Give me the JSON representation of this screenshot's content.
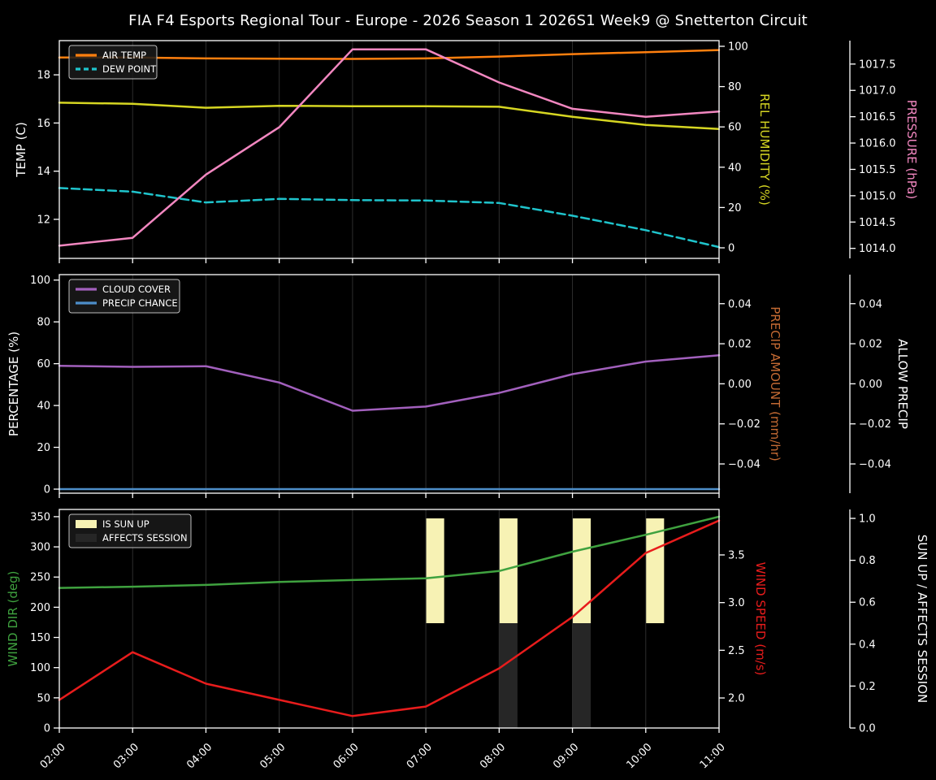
{
  "title": "FIA F4 Esports Regional Tour - Europe - 2026 Season 1 2026S1 Week9 @ Snetterton Circuit",
  "style": {
    "background": "#000000",
    "text_color": "#ffffff",
    "grid_color": "#2e2e2e",
    "spine_color": "#ffffff",
    "legend_border": "#c0c0c0",
    "legend_bg": "#1a1a1a"
  },
  "x_axis": {
    "hours": [
      2,
      3,
      4,
      5,
      6,
      7,
      8,
      9,
      10,
      11
    ],
    "tick_labels": [
      "02:00",
      "03:00",
      "04:00",
      "05:00",
      "06:00",
      "07:00",
      "08:00",
      "09:00",
      "10:00",
      "11:00"
    ]
  },
  "chart_data": [
    {
      "name": "temp-humidity-pressure-chart",
      "type": "line",
      "title": "",
      "axes": {
        "left": {
          "label": "TEMP (C)",
          "label_color": "#ffffff",
          "ylim": [
            10.38,
            19.42
          ],
          "ticks": [
            12,
            14,
            16,
            18
          ],
          "tick_labels": [
            "12",
            "14",
            "16",
            "18"
          ]
        },
        "right1": {
          "label": "REL HUMIDITY (%)",
          "label_color": "#d6d622",
          "ylim": [
            -5.24,
            102.82
          ],
          "ticks": [
            0,
            20,
            40,
            60,
            80,
            100
          ],
          "tick_labels": [
            "0",
            "20",
            "40",
            "60",
            "80",
            "100"
          ]
        },
        "right2": {
          "label": "PRESSURE (hPa)",
          "label_color": "#f287c0",
          "ylim": [
            1013.81,
            1017.945
          ],
          "ticks": [
            1014.0,
            1014.5,
            1015.0,
            1015.5,
            1016.0,
            1016.5,
            1017.0,
            1017.5
          ],
          "tick_labels": [
            "1014.0",
            "1014.5",
            "1015.0",
            "1015.5",
            "1016.0",
            "1016.5",
            "1017.0",
            "1017.5"
          ]
        }
      },
      "series": [
        {
          "id": "air-temp",
          "label": "AIR TEMP",
          "axis": "left",
          "color": "#ff7f0e",
          "dash": false,
          "values": [
            18.72,
            18.72,
            18.68,
            18.67,
            18.66,
            18.68,
            18.76,
            18.86,
            18.94,
            19.03
          ]
        },
        {
          "id": "dew-point",
          "label": "DEW POINT",
          "axis": "left",
          "color": "#1fc4cc",
          "dash": true,
          "values": [
            13.3,
            13.15,
            12.7,
            12.85,
            12.8,
            12.78,
            12.68,
            12.15,
            11.55,
            10.85
          ]
        },
        {
          "id": "rel-humidity",
          "label": "REL HUMIDITY",
          "axis": "right1",
          "color": "#d6d622",
          "dash": false,
          "values": [
            72,
            71.5,
            69.5,
            70.5,
            70.3,
            70.3,
            70,
            65,
            61,
            59
          ]
        },
        {
          "id": "pressure",
          "label": "PRESSURE",
          "axis": "right2",
          "color": "#f287c0",
          "dash": false,
          "values": [
            1014.05,
            1014.2,
            1015.4,
            1016.3,
            1017.78,
            1017.78,
            1017.15,
            1016.65,
            1016.5,
            1016.6
          ]
        }
      ],
      "legend": [
        {
          "label": "AIR TEMP",
          "color": "#ff7f0e",
          "kind": "line",
          "dash": false
        },
        {
          "label": "DEW POINT",
          "color": "#1fc4cc",
          "kind": "line",
          "dash": true
        }
      ]
    },
    {
      "name": "cloud-precip-chart",
      "type": "line",
      "title": "",
      "axes": {
        "left": {
          "label": "PERCENTAGE (%)",
          "label_color": "#ffffff",
          "ylim": [
            -1.94,
            102.6
          ],
          "ticks": [
            0,
            20,
            40,
            60,
            80,
            100
          ],
          "tick_labels": [
            "0",
            "20",
            "40",
            "60",
            "80",
            "100"
          ]
        },
        "right1": {
          "label": "PRECIP AMOUNT (mm/hr)",
          "label_color": "#c46a33",
          "ylim": [
            -0.0546,
            0.0545
          ],
          "ticks": [
            -0.04,
            -0.02,
            0.0,
            0.02,
            0.04
          ],
          "tick_labels": [
            "−0.04",
            "−0.02",
            "0.00",
            "0.02",
            "0.04"
          ]
        },
        "right2": {
          "label": "ALLOW PRECIP",
          "label_color": "#ffffff",
          "ylim": [
            -0.0546,
            0.0545
          ],
          "ticks": [
            -0.04,
            -0.02,
            0.0,
            0.02,
            0.04
          ],
          "tick_labels": [
            "−0.04",
            "−0.02",
            "0.00",
            "0.02",
            "0.04"
          ]
        }
      },
      "series": [
        {
          "id": "cloud-cover",
          "label": "CLOUD COVER",
          "axis": "left",
          "color": "#a260bd",
          "dash": false,
          "values": [
            59,
            58.5,
            58.8,
            51,
            37.5,
            39.5,
            46,
            55,
            61,
            64
          ]
        },
        {
          "id": "precip-chance",
          "label": "PRECIP CHANCE",
          "axis": "left",
          "color": "#4d8ec9",
          "dash": false,
          "values": [
            0,
            0,
            0,
            0,
            0,
            0,
            0,
            0,
            0,
            0
          ]
        }
      ],
      "legend": [
        {
          "label": "CLOUD COVER",
          "color": "#a260bd",
          "kind": "line",
          "dash": false
        },
        {
          "label": "PRECIP CHANCE",
          "color": "#4d8ec9",
          "kind": "line",
          "dash": false
        }
      ]
    },
    {
      "name": "wind-sun-chart",
      "type": "line",
      "title": "",
      "axes": {
        "left": {
          "label": "WIND DIR (deg)",
          "label_color": "#3fa23f",
          "ylim": [
            0,
            362
          ],
          "ticks": [
            0,
            50,
            100,
            150,
            200,
            250,
            300,
            350
          ],
          "tick_labels": [
            "0",
            "50",
            "100",
            "150",
            "200",
            "250",
            "300",
            "350"
          ]
        },
        "right1": {
          "label": "WIND SPEED (m/s)",
          "label_color": "#e81c1c",
          "ylim": [
            1.685,
            3.977
          ],
          "ticks": [
            2.0,
            2.5,
            3.0,
            3.5
          ],
          "tick_labels": [
            "2.0",
            "2.5",
            "3.0",
            "3.5"
          ]
        },
        "right2": {
          "label": "SUN UP / AFFECTS SESSION",
          "label_color": "#ffffff",
          "ylim": [
            0,
            1.0427
          ],
          "ticks": [
            0.0,
            0.2,
            0.4,
            0.6,
            0.8,
            1.0
          ],
          "tick_labels": [
            "0.0",
            "0.2",
            "0.4",
            "0.6",
            "0.8",
            "1.0"
          ]
        }
      },
      "series": [
        {
          "id": "wind-dir",
          "label": "WIND DIR",
          "axis": "left",
          "color": "#3fa23f",
          "dash": false,
          "values": [
            232,
            234,
            237,
            242,
            245,
            248,
            260,
            292,
            320,
            350
          ]
        },
        {
          "id": "wind-speed",
          "label": "WIND SPEED",
          "axis": "right1",
          "color": "#e81c1c",
          "dash": false,
          "values": [
            1.98,
            2.48,
            2.15,
            1.98,
            1.81,
            1.91,
            2.31,
            2.85,
            3.52,
            3.86
          ]
        }
      ],
      "bars": [
        {
          "id": "sun-up-bar",
          "label": "IS SUN UP",
          "axis": "right2",
          "color": "#f7f2b4",
          "hours": [
            7,
            8,
            9,
            10
          ],
          "v0": 0.5,
          "v1": 1.0,
          "width_hours": 0.25
        },
        {
          "id": "affects-session-bar",
          "label": "AFFECTS SESSION",
          "axis": "right2",
          "color": "#262626",
          "hours": [
            8,
            9
          ],
          "v0": 0.0,
          "v1": 0.5,
          "width_hours": 0.25
        }
      ],
      "legend": [
        {
          "label": "IS SUN UP",
          "color": "#f7f2b4",
          "kind": "patch",
          "dash": false
        },
        {
          "label": "AFFECTS SESSION",
          "color": "#262626",
          "kind": "patch",
          "dash": false
        }
      ]
    }
  ]
}
